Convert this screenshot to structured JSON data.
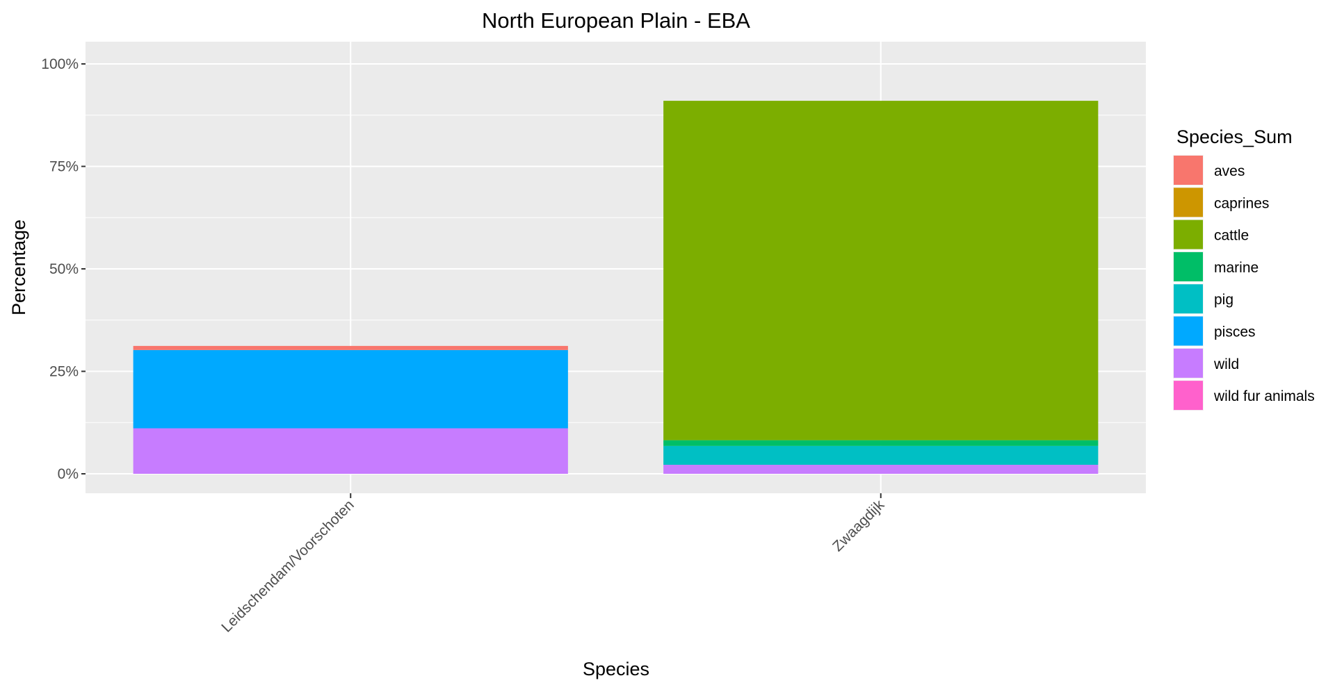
{
  "chart_data": {
    "type": "bar",
    "title": "North European Plain - EBA",
    "xlabel": "Species",
    "ylabel": "Percentage",
    "categories": [
      "Leidschendam/Voorschoten",
      "Zwaagdijk"
    ],
    "y_ticks": [
      "0%",
      "25%",
      "50%",
      "75%",
      "100%"
    ],
    "ylim": [
      0,
      100
    ],
    "stacked": true,
    "grid": true,
    "legend_title": "Species_Sum",
    "legend_position": "right",
    "series": [
      {
        "name": "aves",
        "color": "#F8766D",
        "values": [
          1.0,
          0
        ]
      },
      {
        "name": "caprines",
        "color": "#CD9600",
        "values": [
          0,
          0
        ]
      },
      {
        "name": "cattle",
        "color": "#7CAE00",
        "values": [
          0,
          82.8
        ]
      },
      {
        "name": "marine",
        "color": "#00BE67",
        "values": [
          0,
          1.4
        ]
      },
      {
        "name": "pig",
        "color": "#00BFC4",
        "values": [
          0,
          4.6
        ]
      },
      {
        "name": "pisces",
        "color": "#00A9FF",
        "values": [
          19.1,
          0
        ]
      },
      {
        "name": "wild",
        "color": "#C77CFF",
        "values": [
          11.1,
          2.2
        ]
      },
      {
        "name": "wild fur animals",
        "color": "#FF61CC",
        "values": [
          0,
          0
        ]
      }
    ]
  }
}
